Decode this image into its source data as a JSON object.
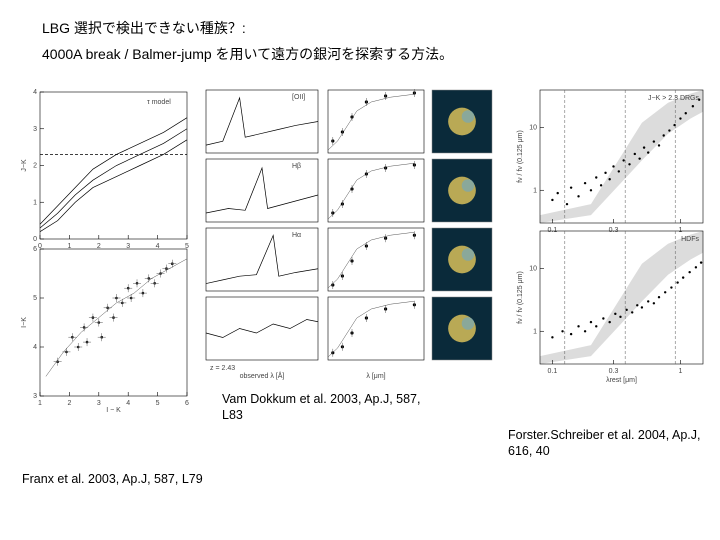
{
  "heading": {
    "line1": "LBG 選択で検出できない種族？:",
    "line2": "4000A break / Balmer-jump を用いて遠方の銀河を探索する方法。"
  },
  "captions": {
    "vandokkum": "Vam Dokkum et al. 2003, Ap.J, 587, L83",
    "forster": "Forster.Schreiber et al. 2004, Ap.J, 616, 40",
    "franx": "Franx et al. 2003, Ap.J, 587, L79"
  },
  "fig_franx": {
    "type": "line+scatter",
    "panels": 2,
    "x_label": "I − K",
    "y_labels": [
      "J−K",
      "I−K"
    ],
    "top": {
      "xlim": [
        0,
        5
      ],
      "ylim": [
        0,
        4
      ],
      "curves": [
        [
          [
            0.0,
            0.4
          ],
          [
            0.6,
            0.9
          ],
          [
            1.2,
            1.4
          ],
          [
            1.8,
            1.9
          ],
          [
            2.6,
            2.3
          ],
          [
            3.4,
            2.6
          ],
          [
            4.2,
            2.9
          ],
          [
            5.0,
            3.3
          ]
        ],
        [
          [
            0.0,
            0.3
          ],
          [
            0.6,
            0.7
          ],
          [
            1.2,
            1.2
          ],
          [
            1.8,
            1.6
          ],
          [
            2.6,
            2.0
          ],
          [
            3.4,
            2.3
          ],
          [
            4.2,
            2.6
          ],
          [
            5.0,
            3.0
          ]
        ],
        [
          [
            0.0,
            0.2
          ],
          [
            0.6,
            0.5
          ],
          [
            1.2,
            1.0
          ],
          [
            1.8,
            1.4
          ],
          [
            2.6,
            1.7
          ],
          [
            3.4,
            2.0
          ],
          [
            4.2,
            2.3
          ],
          [
            5.0,
            2.7
          ]
        ]
      ],
      "dashed_h": 2.3,
      "label": "τ model"
    },
    "bottom": {
      "xlim": [
        1,
        6
      ],
      "ylim": [
        3,
        6
      ],
      "points": [
        [
          1.6,
          3.7
        ],
        [
          1.9,
          3.9
        ],
        [
          2.1,
          4.2
        ],
        [
          2.3,
          4.0
        ],
        [
          2.5,
          4.4
        ],
        [
          2.6,
          4.1
        ],
        [
          2.8,
          4.6
        ],
        [
          3.0,
          4.5
        ],
        [
          3.1,
          4.2
        ],
        [
          3.3,
          4.8
        ],
        [
          3.5,
          4.6
        ],
        [
          3.6,
          5.0
        ],
        [
          3.8,
          4.9
        ],
        [
          4.0,
          5.2
        ],
        [
          4.1,
          5.0
        ],
        [
          4.3,
          5.3
        ],
        [
          4.5,
          5.1
        ],
        [
          4.7,
          5.4
        ],
        [
          4.9,
          5.3
        ],
        [
          5.1,
          5.5
        ],
        [
          5.3,
          5.6
        ],
        [
          5.5,
          5.7
        ]
      ],
      "curve": [
        [
          1.2,
          3.4
        ],
        [
          1.8,
          3.9
        ],
        [
          2.4,
          4.3
        ],
        [
          3.0,
          4.6
        ],
        [
          3.6,
          4.9
        ],
        [
          4.2,
          5.1
        ],
        [
          4.8,
          5.4
        ],
        [
          5.4,
          5.6
        ],
        [
          6.0,
          5.8
        ]
      ]
    },
    "colors": {
      "axis": "#000000",
      "series": "#000000",
      "bg": "#ffffff"
    },
    "fontsize": 7
  },
  "fig_vandokkum": {
    "type": "spectra_panels+sed_panels+thumbnails",
    "spectra": {
      "n_panels": 4,
      "xlim": [
        6000,
        10000
      ],
      "labels": [
        "[OII]",
        "Hβ",
        "Hα",
        ""
      ],
      "curves": [
        [
          [
            6000,
            0.3
          ],
          [
            6600,
            0.35
          ],
          [
            7200,
            0.9
          ],
          [
            7400,
            0.4
          ],
          [
            8000,
            0.45
          ],
          [
            8600,
            0.5
          ],
          [
            9200,
            0.55
          ],
          [
            10000,
            0.6
          ]
        ],
        [
          [
            6000,
            0.25
          ],
          [
            6800,
            0.3
          ],
          [
            7400,
            0.28
          ],
          [
            8000,
            0.75
          ],
          [
            8200,
            0.3
          ],
          [
            8800,
            0.35
          ],
          [
            9400,
            0.4
          ],
          [
            10000,
            0.45
          ]
        ],
        [
          [
            6000,
            0.2
          ],
          [
            6600,
            0.25
          ],
          [
            7200,
            0.3
          ],
          [
            7800,
            0.32
          ],
          [
            8400,
            0.85
          ],
          [
            8600,
            0.3
          ],
          [
            9200,
            0.35
          ],
          [
            10000,
            0.4
          ]
        ],
        [
          [
            6000,
            0.3
          ],
          [
            6600,
            0.28
          ],
          [
            7200,
            0.32
          ],
          [
            7800,
            0.3
          ],
          [
            8400,
            0.34
          ],
          [
            9000,
            0.32
          ],
          [
            9600,
            0.36
          ],
          [
            10000,
            0.35
          ]
        ]
      ],
      "xlabel": "observed λ [Å]",
      "footnote": "z = 2.43"
    },
    "seds": {
      "n_panels": 4,
      "xlim": [
        0.4,
        2.4
      ],
      "points_per_panel": [
        [
          [
            0.5,
            0.2
          ],
          [
            0.7,
            0.35
          ],
          [
            0.9,
            0.6
          ],
          [
            1.2,
            0.85
          ],
          [
            1.6,
            0.95
          ],
          [
            2.2,
            1.0
          ]
        ],
        [
          [
            0.5,
            0.15
          ],
          [
            0.7,
            0.3
          ],
          [
            0.9,
            0.55
          ],
          [
            1.2,
            0.8
          ],
          [
            1.6,
            0.9
          ],
          [
            2.2,
            0.95
          ]
        ],
        [
          [
            0.5,
            0.1
          ],
          [
            0.7,
            0.25
          ],
          [
            0.9,
            0.5
          ],
          [
            1.2,
            0.75
          ],
          [
            1.6,
            0.88
          ],
          [
            2.2,
            0.93
          ]
        ],
        [
          [
            0.5,
            0.12
          ],
          [
            0.7,
            0.22
          ],
          [
            0.9,
            0.45
          ],
          [
            1.2,
            0.7
          ],
          [
            1.6,
            0.85
          ],
          [
            2.2,
            0.92
          ]
        ]
      ],
      "curve": [
        [
          0.4,
          0.05
        ],
        [
          0.6,
          0.2
        ],
        [
          0.8,
          0.45
        ],
        [
          1.0,
          0.7
        ],
        [
          1.3,
          0.85
        ],
        [
          1.7,
          0.93
        ],
        [
          2.2,
          0.98
        ]
      ],
      "xlabel": "λ [μm]"
    },
    "thumbs": {
      "n": 4,
      "bg": "#0a2a3a",
      "blob": "#d8c05a"
    },
    "colors": {
      "axis": "#000000",
      "bg": "#ffffff"
    },
    "fontsize": 6
  },
  "fig_forster": {
    "type": "scatter_with_band",
    "panels": 2,
    "x_label": "λrest [μm]",
    "titles": [
      "J−K > 2.3 DRGs",
      "HDFs"
    ],
    "y_labels": [
      "fν / fν (0.125 μm)",
      "fν / fν (0.125 μm)"
    ],
    "xlim": [
      0.08,
      1.5
    ],
    "ylim": [
      0.3,
      40
    ],
    "scale": "log-log",
    "band_top": [
      [
        0.08,
        0.4
      ],
      [
        0.2,
        0.6
      ],
      [
        0.5,
        12
      ],
      [
        0.8,
        25
      ],
      [
        1.2,
        35
      ],
      [
        1.5,
        40
      ]
    ],
    "band_bot": [
      [
        0.08,
        0.3
      ],
      [
        0.2,
        0.4
      ],
      [
        0.5,
        3
      ],
      [
        0.8,
        8
      ],
      [
        1.2,
        14
      ],
      [
        1.5,
        18
      ]
    ],
    "points_top": [
      [
        0.1,
        0.7
      ],
      [
        0.11,
        0.9
      ],
      [
        0.13,
        0.6
      ],
      [
        0.14,
        1.1
      ],
      [
        0.16,
        0.8
      ],
      [
        0.18,
        1.3
      ],
      [
        0.2,
        1.0
      ],
      [
        0.22,
        1.6
      ],
      [
        0.24,
        1.2
      ],
      [
        0.26,
        1.9
      ],
      [
        0.28,
        1.5
      ],
      [
        0.3,
        2.4
      ],
      [
        0.33,
        2.0
      ],
      [
        0.36,
        3.0
      ],
      [
        0.4,
        2.6
      ],
      [
        0.44,
        3.8
      ],
      [
        0.48,
        3.2
      ],
      [
        0.52,
        4.8
      ],
      [
        0.56,
        4.0
      ],
      [
        0.62,
        6.0
      ],
      [
        0.68,
        5.2
      ],
      [
        0.74,
        7.5
      ],
      [
        0.82,
        9.0
      ],
      [
        0.9,
        11
      ],
      [
        1.0,
        14
      ],
      [
        1.1,
        17
      ],
      [
        1.25,
        22
      ],
      [
        1.4,
        28
      ]
    ],
    "points_bot": [
      [
        0.1,
        0.8
      ],
      [
        0.12,
        1.0
      ],
      [
        0.14,
        0.9
      ],
      [
        0.16,
        1.2
      ],
      [
        0.18,
        1.0
      ],
      [
        0.2,
        1.4
      ],
      [
        0.22,
        1.2
      ],
      [
        0.25,
        1.6
      ],
      [
        0.28,
        1.4
      ],
      [
        0.31,
        1.9
      ],
      [
        0.34,
        1.7
      ],
      [
        0.38,
        2.2
      ],
      [
        0.42,
        2.0
      ],
      [
        0.46,
        2.6
      ],
      [
        0.5,
        2.4
      ],
      [
        0.56,
        3.0
      ],
      [
        0.62,
        2.8
      ],
      [
        0.68,
        3.5
      ],
      [
        0.76,
        4.2
      ],
      [
        0.85,
        5.0
      ],
      [
        0.95,
        6.0
      ],
      [
        1.05,
        7.2
      ],
      [
        1.18,
        8.8
      ],
      [
        1.32,
        10.5
      ],
      [
        1.45,
        12.5
      ]
    ],
    "vlines": [
      0.125,
      0.37,
      0.91
    ],
    "colors": {
      "axis": "#000000",
      "band": "#dcdcdc",
      "points": "#000000",
      "bg": "#ffffff"
    },
    "fontsize": 6
  }
}
